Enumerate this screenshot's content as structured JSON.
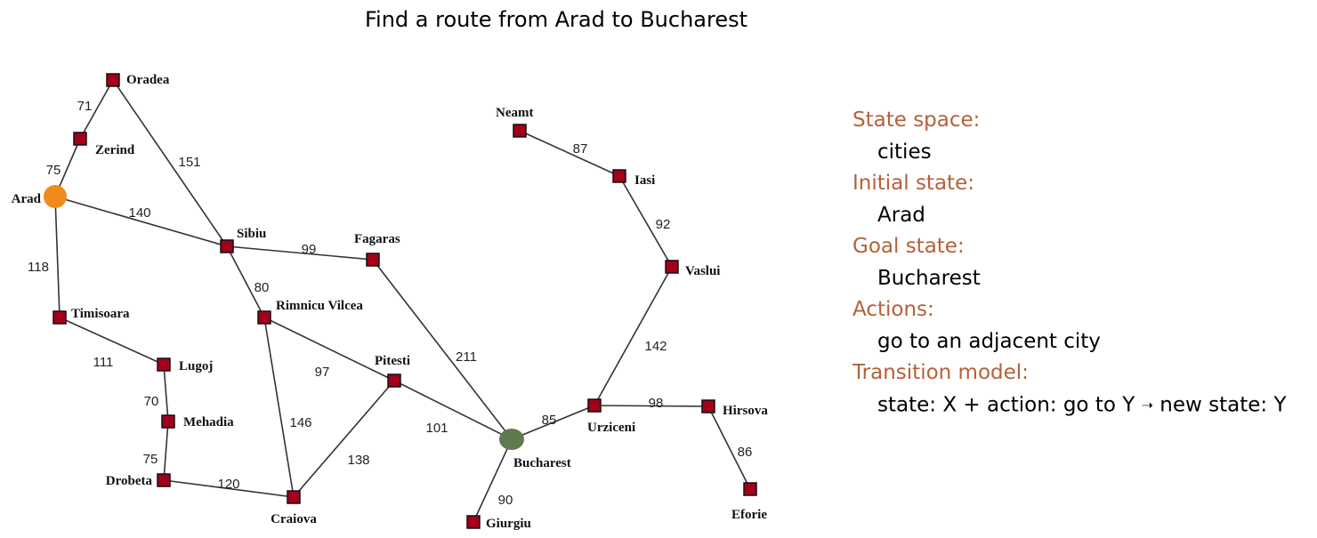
{
  "title": "Find a route from Arad to Bucharest",
  "colors": {
    "start": "#f08a1c",
    "goal": "#5f7a4f",
    "city": "#a3001b",
    "heading": "#b5603a"
  },
  "map": {
    "start_city": "Arad",
    "goal_city": "Bucharest",
    "cities": [
      {
        "id": "oradea",
        "name": "Oradea"
      },
      {
        "id": "zerind",
        "name": "Zerind"
      },
      {
        "id": "arad",
        "name": "Arad"
      },
      {
        "id": "timisoara",
        "name": "Timisoara"
      },
      {
        "id": "lugoj",
        "name": "Lugoj"
      },
      {
        "id": "mehadia",
        "name": "Mehadia"
      },
      {
        "id": "drobeta",
        "name": "Drobeta"
      },
      {
        "id": "craiova",
        "name": "Craiova"
      },
      {
        "id": "sibiu",
        "name": "Sibiu"
      },
      {
        "id": "rimnicu",
        "name": "Rimnicu Vilcea"
      },
      {
        "id": "fagaras",
        "name": "Fagaras"
      },
      {
        "id": "pitesti",
        "name": "Pitesti"
      },
      {
        "id": "bucharest",
        "name": "Bucharest"
      },
      {
        "id": "giurgiu",
        "name": "Giurgiu"
      },
      {
        "id": "urziceni",
        "name": "Urziceni"
      },
      {
        "id": "hirsova",
        "name": "Hirsova"
      },
      {
        "id": "eforie",
        "name": "Eforie"
      },
      {
        "id": "vaslui",
        "name": "Vaslui"
      },
      {
        "id": "iasi",
        "name": "Iasi"
      },
      {
        "id": "neamt",
        "name": "Neamt"
      }
    ],
    "roads": [
      {
        "from": "oradea",
        "to": "zerind",
        "distance": "71"
      },
      {
        "from": "zerind",
        "to": "arad",
        "distance": "75"
      },
      {
        "from": "oradea",
        "to": "sibiu",
        "distance": "151"
      },
      {
        "from": "arad",
        "to": "sibiu",
        "distance": "140"
      },
      {
        "from": "arad",
        "to": "timisoara",
        "distance": "118"
      },
      {
        "from": "timisoara",
        "to": "lugoj",
        "distance": "111"
      },
      {
        "from": "lugoj",
        "to": "mehadia",
        "distance": "70"
      },
      {
        "from": "mehadia",
        "to": "drobeta",
        "distance": "75"
      },
      {
        "from": "drobeta",
        "to": "craiova",
        "distance": "120"
      },
      {
        "from": "sibiu",
        "to": "fagaras",
        "distance": "99"
      },
      {
        "from": "sibiu",
        "to": "rimnicu",
        "distance": "80"
      },
      {
        "from": "rimnicu",
        "to": "pitesti",
        "distance": "97"
      },
      {
        "from": "rimnicu",
        "to": "craiova",
        "distance": "146"
      },
      {
        "from": "craiova",
        "to": "pitesti",
        "distance": "138"
      },
      {
        "from": "fagaras",
        "to": "bucharest",
        "distance": "211"
      },
      {
        "from": "pitesti",
        "to": "bucharest",
        "distance": "101"
      },
      {
        "from": "bucharest",
        "to": "giurgiu",
        "distance": "90"
      },
      {
        "from": "bucharest",
        "to": "urziceni",
        "distance": "85"
      },
      {
        "from": "urziceni",
        "to": "hirsova",
        "distance": "98"
      },
      {
        "from": "hirsova",
        "to": "eforie",
        "distance": "86"
      },
      {
        "from": "urziceni",
        "to": "vaslui",
        "distance": "142"
      },
      {
        "from": "vaslui",
        "to": "iasi",
        "distance": "92"
      },
      {
        "from": "iasi",
        "to": "neamt",
        "distance": "87"
      }
    ]
  },
  "problem": {
    "state_space_label": "State space:",
    "state_space_value": "cities",
    "initial_state_label": "Initial state:",
    "initial_state_value": "Arad",
    "goal_state_label": "Goal state:",
    "goal_state_value": "Bucharest",
    "actions_label": "Actions:",
    "actions_value": "go to an adjacent city",
    "transition_label": "Transition model:",
    "transition_part1": "state: X + action: go to Y",
    "transition_part2": "new state: Y"
  }
}
